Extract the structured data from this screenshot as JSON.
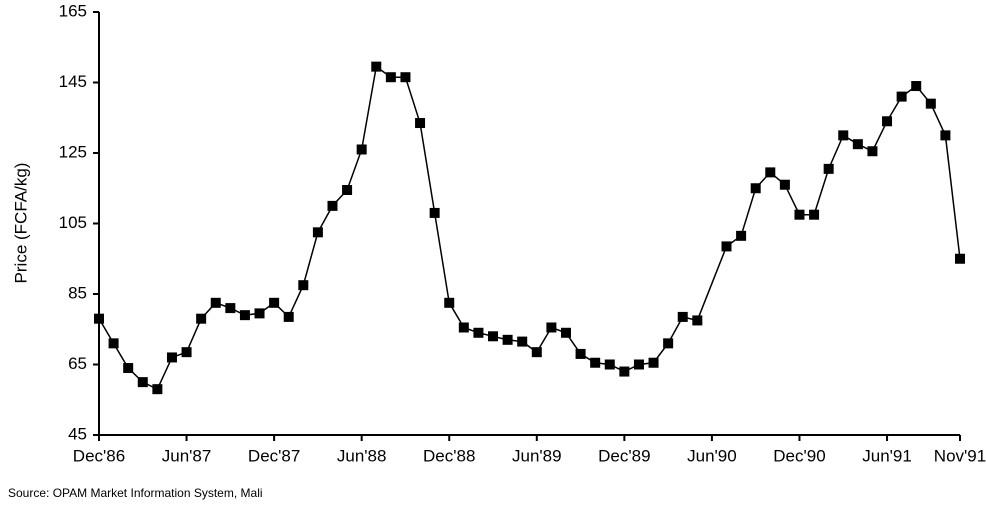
{
  "chart_data": {
    "type": "line",
    "y_label": "Price (FCFA/kg)",
    "source": "Source:  OPAM Market Information System, Mali",
    "xlim": [
      0,
      59
    ],
    "xticks": [
      {
        "value": 0,
        "label": "Dec'86"
      },
      {
        "value": 6,
        "label": "Jun'87"
      },
      {
        "value": 12,
        "label": "Dec'87"
      },
      {
        "value": 18,
        "label": "Jun'88"
      },
      {
        "value": 24,
        "label": "Dec'88"
      },
      {
        "value": 30,
        "label": "Jun'89"
      },
      {
        "value": 36,
        "label": "Dec'89"
      },
      {
        "value": 42,
        "label": "Jun'90"
      },
      {
        "value": 48,
        "label": "Dec'90"
      },
      {
        "value": 54,
        "label": "Jun'91"
      },
      {
        "value": 59,
        "label": "Nov'91"
      }
    ],
    "ylim": [
      45,
      165
    ],
    "yticks": [
      45,
      65,
      85,
      105,
      125,
      145,
      165
    ],
    "series": [
      {
        "color": "#000000",
        "x": [
          0,
          1,
          2,
          3,
          4,
          5,
          6,
          7,
          8,
          9,
          10,
          11,
          12,
          13,
          14,
          15,
          16,
          17,
          18,
          19,
          20,
          21,
          22,
          23,
          24,
          25,
          26,
          27,
          28,
          29,
          30,
          31,
          32,
          33,
          34,
          35,
          36,
          37,
          38,
          39,
          40,
          41,
          43,
          44,
          45,
          46,
          47,
          48,
          49,
          50,
          51,
          52,
          53,
          54,
          55,
          56,
          57,
          58,
          59
        ],
        "values": [
          78,
          71,
          64,
          60,
          58,
          67,
          68.5,
          78,
          82.5,
          81,
          79,
          79.5,
          82.5,
          78.5,
          87.5,
          102.5,
          110,
          114.5,
          126,
          149.5,
          146.5,
          146.5,
          133.5,
          108,
          82.5,
          75.5,
          74,
          73,
          72,
          71.5,
          68.5,
          75.5,
          74,
          68,
          65.5,
          65,
          63,
          65,
          65.5,
          71,
          78.5,
          77.5,
          98.5,
          101.5,
          115,
          119.5,
          116,
          107.5,
          107.5,
          120.5,
          130,
          127.5,
          125.5,
          134,
          141,
          144,
          139,
          130,
          95
        ]
      }
    ]
  }
}
